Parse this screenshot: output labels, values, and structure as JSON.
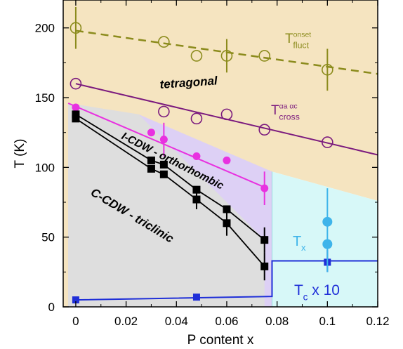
{
  "chart_data": {
    "type": "scatter",
    "title": "",
    "xlabel": "P content x",
    "ylabel": "T (K)",
    "xlim": [
      -0.005,
      0.12
    ],
    "ylim": [
      0,
      220
    ],
    "xticks": [
      0,
      0.02,
      0.04,
      0.06,
      0.08,
      0.1,
      0.12
    ],
    "xtick_labels": [
      "0",
      "0.02",
      "0.04",
      "0.06",
      "0.08",
      "0.1",
      "0.12"
    ],
    "yticks": [
      0,
      50,
      100,
      150,
      200
    ],
    "ytick_labels": [
      "0",
      "50",
      "100",
      "150",
      "200"
    ],
    "grid": false,
    "colors": {
      "tetragonal": "#f5e4c0",
      "orthorhombic": "#ddd0f5",
      "triclinic": "#dedede",
      "cyan_region": "#d7f8f8",
      "onset": "#8b8b1c",
      "cross": "#7b1a7e",
      "icdw": "#e831e0",
      "ccdw": "#000000",
      "tc": "#1f2fd8",
      "tx": "#3eb4ea"
    },
    "regions": [
      {
        "name": "tetragonal",
        "label": "tetragonal"
      },
      {
        "name": "orthorhombic",
        "label": "I-CDW - orthorhombic"
      },
      {
        "name": "triclinic",
        "label": "C-CDW - triclinic"
      }
    ],
    "series": [
      {
        "key": "onset",
        "label_main": "T",
        "label_sup": "onset",
        "label_sub": "fluct",
        "marker": "open-circle",
        "points": [
          {
            "x": 0.0,
            "y": 200,
            "err": 15
          },
          {
            "x": 0.035,
            "y": 190,
            "err": 0
          },
          {
            "x": 0.048,
            "y": 180,
            "err": 0
          },
          {
            "x": 0.06,
            "y": 180,
            "err": 12
          },
          {
            "x": 0.075,
            "y": 180,
            "err": 0
          },
          {
            "x": 0.1,
            "y": 170,
            "err": 15
          }
        ],
        "fit": [
          [
            0.0,
            198
          ],
          [
            0.12,
            167
          ]
        ]
      },
      {
        "key": "cross",
        "label_main": "T",
        "label_sup": "αa αc",
        "label_sub": "cross",
        "marker": "open-circle",
        "points": [
          {
            "x": 0.0,
            "y": 160
          },
          {
            "x": 0.035,
            "y": 140
          },
          {
            "x": 0.048,
            "y": 135
          },
          {
            "x": 0.06,
            "y": 138
          },
          {
            "x": 0.075,
            "y": 127
          },
          {
            "x": 0.1,
            "y": 118
          }
        ],
        "fit": [
          [
            0.0,
            160
          ],
          [
            0.12,
            109
          ]
        ]
      },
      {
        "key": "icdw",
        "marker": "filled-circle",
        "points": [
          {
            "x": 0.0,
            "y": 143
          },
          {
            "x": 0.03,
            "y": 125
          },
          {
            "x": 0.035,
            "y": 120,
            "err": 12
          },
          {
            "x": 0.048,
            "y": 108
          },
          {
            "x": 0.06,
            "y": 105
          },
          {
            "x": 0.075,
            "y": 85,
            "err": 12
          }
        ],
        "fit": [
          [
            -0.003,
            146
          ],
          [
            0.076,
            85
          ]
        ]
      },
      {
        "key": "ccdw_a",
        "marker": "filled-square",
        "points": [
          {
            "x": 0.0,
            "y": 138
          },
          {
            "x": 0.03,
            "y": 105
          },
          {
            "x": 0.035,
            "y": 102
          },
          {
            "x": 0.048,
            "y": 84
          },
          {
            "x": 0.06,
            "y": 70
          },
          {
            "x": 0.075,
            "y": 48,
            "err": 9
          }
        ]
      },
      {
        "key": "ccdw_b",
        "marker": "filled-square",
        "points": [
          {
            "x": 0.0,
            "y": 135
          },
          {
            "x": 0.03,
            "y": 99
          },
          {
            "x": 0.035,
            "y": 95
          },
          {
            "x": 0.048,
            "y": 77,
            "err": 7
          },
          {
            "x": 0.06,
            "y": 60,
            "err": 9
          },
          {
            "x": 0.075,
            "y": 29,
            "err": 10
          }
        ]
      },
      {
        "key": "tc",
        "label_main": "T",
        "label_sub": "c",
        "label_suffix": " x 10",
        "marker": "filled-square",
        "points": [
          {
            "x": 0.0,
            "y": 5
          },
          {
            "x": 0.048,
            "y": 7
          },
          {
            "x": 0.1,
            "y": 32
          }
        ],
        "step": [
          [
            0.0,
            5
          ],
          [
            0.078,
            7.5
          ],
          [
            0.078,
            33
          ],
          [
            0.12,
            33
          ]
        ]
      },
      {
        "key": "tx",
        "label_main": "T",
        "label_sub": "x",
        "marker": "filled-circle",
        "points": [
          {
            "x": 0.1,
            "y": 61
          },
          {
            "x": 0.1,
            "y": 45
          }
        ],
        "errbar": [
          0.1,
          25,
          85
        ]
      }
    ]
  }
}
